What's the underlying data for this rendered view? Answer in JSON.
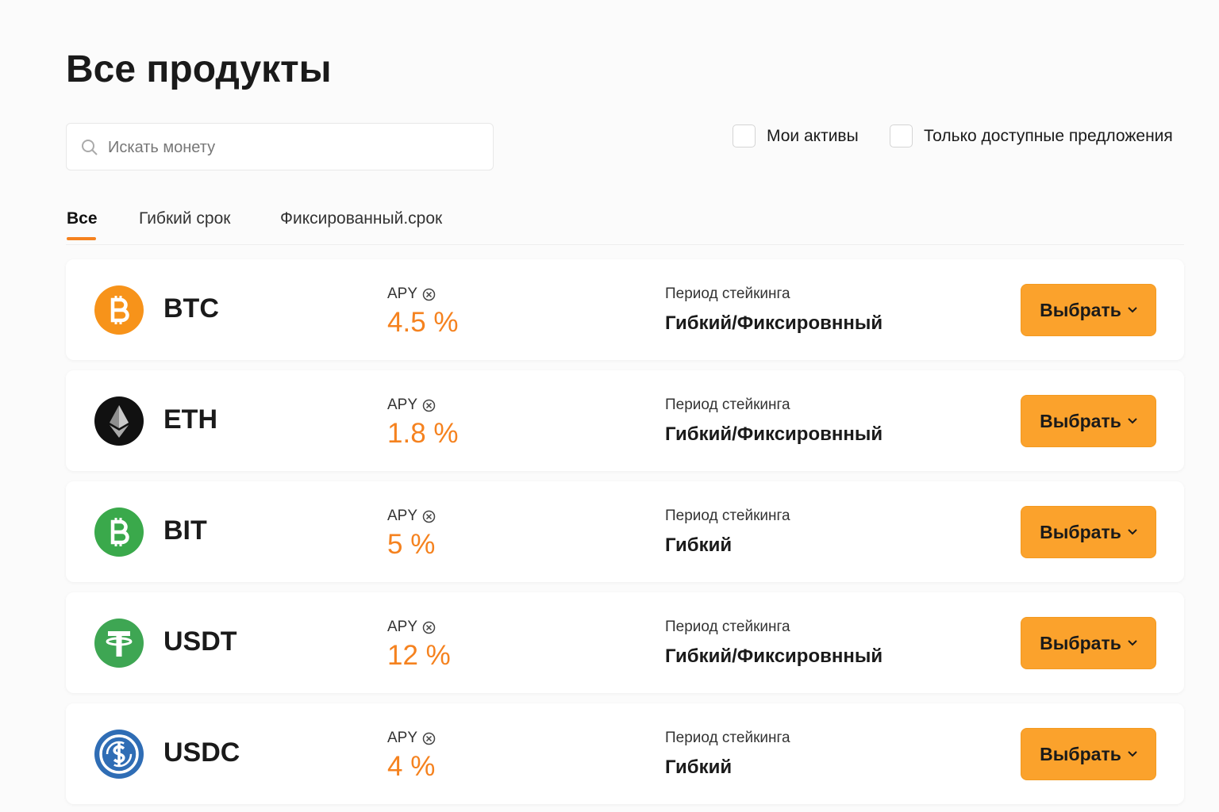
{
  "header": {
    "title": "Все продукты"
  },
  "search": {
    "placeholder": "Искать монету"
  },
  "filters": [
    "Мои активы",
    "Только доступные предложения"
  ],
  "tabs": [
    "Все",
    "Гибкий срок",
    "Фиксированный.срок"
  ],
  "rows": [
    {
      "coin": "BTC",
      "apy_label": "APY",
      "apy": "4.5 %",
      "period_label": "Период стейкинга",
      "period": "Гибкий/Фиксировнный",
      "button": "Выбрать"
    },
    {
      "coin": "ETH",
      "apy_label": "APY",
      "apy": "1.8 %",
      "period_label": "Период стейкинга",
      "period": "Гибкий/Фиксировнный",
      "button": "Выбрать"
    },
    {
      "coin": "BIT",
      "apy_label": "APY",
      "apy": "5 %",
      "period_label": "Период стейкинга",
      "period": "Гибкий",
      "button": "Выбрать"
    },
    {
      "coin": "USDT",
      "apy_label": "APY",
      "apy": "12 %",
      "period_label": "Период стейкинга",
      "period": "Гибкий/Фиксировнный",
      "button": "Выбрать"
    },
    {
      "coin": "USDC",
      "apy_label": "APY",
      "apy": "4 %",
      "period_label": "Период стейкинга",
      "period": "Гибкий",
      "button": "Выбрать"
    }
  ]
}
